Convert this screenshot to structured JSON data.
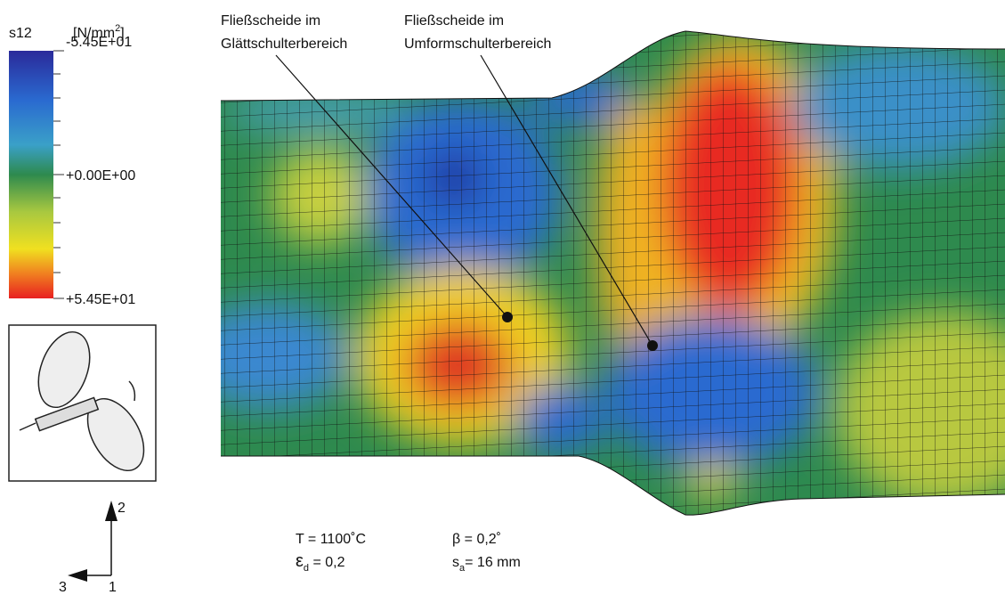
{
  "legend": {
    "variable": "s12",
    "unit": {
      "open": "[N/mm",
      "sup": "2",
      "close": "]"
    },
    "top_label": "-5.45E+01",
    "mid_label": "+0.00E+00",
    "bottom_label": "+5.45E+01"
  },
  "annotations": [
    {
      "lines": [
        "Fließscheide im",
        "Glättschulterbereich"
      ]
    },
    {
      "lines": [
        "Fließscheide im",
        "Umformschulterbereich"
      ]
    }
  ],
  "parameters": {
    "temperature": "T = 1100˚C",
    "strain": {
      "symbol": "ε",
      "sub": "d",
      "text": " = 0,2"
    },
    "angle": "β = 0,2˚",
    "feed": {
      "symbol": "s",
      "sub": "a",
      "text": "= 16 mm"
    }
  },
  "axes": {
    "vertical": "2",
    "left": "3",
    "out": "1"
  }
}
